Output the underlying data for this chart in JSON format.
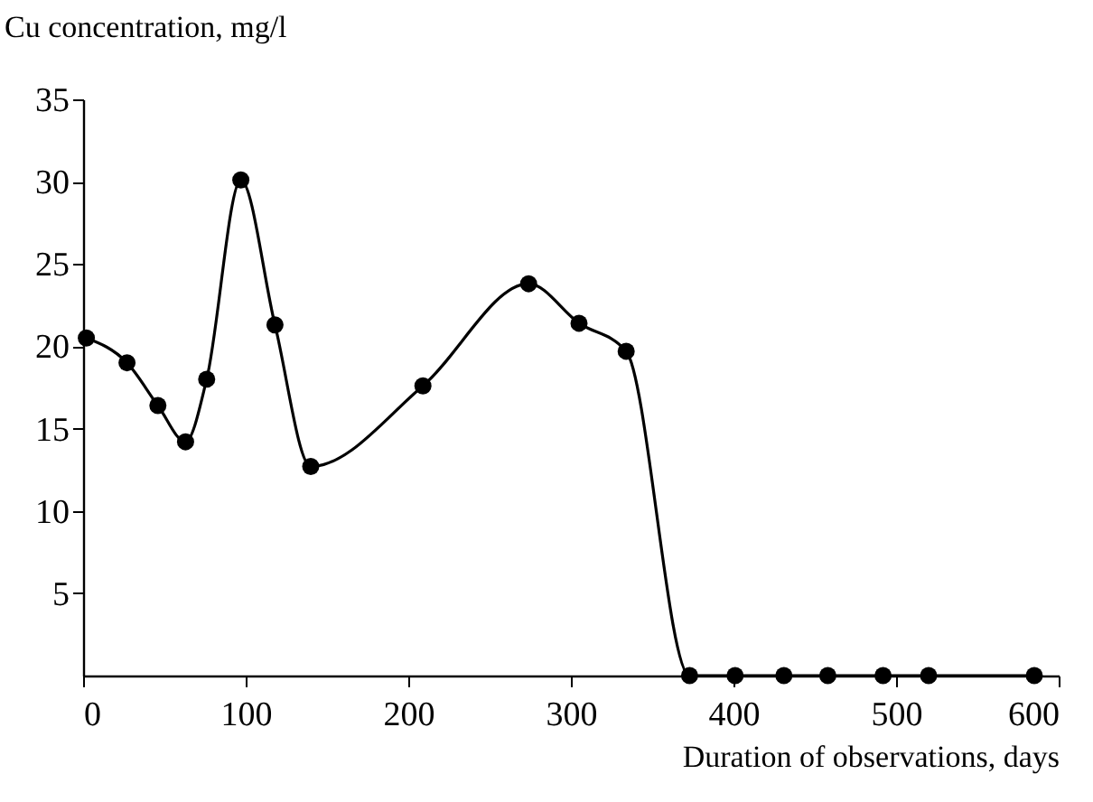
{
  "chart_data": {
    "type": "line",
    "xlabel": "Duration of observations, days",
    "ylabel": "Cu concentration, mg/l",
    "x": [
      2,
      27,
      46,
      63,
      76,
      97,
      118,
      140,
      209,
      274,
      305,
      334,
      373,
      401,
      431,
      458,
      492,
      520,
      585
    ],
    "series": [
      {
        "color": "#000000",
        "values": [
          20.5,
          19.0,
          16.4,
          14.2,
          18.0,
          30.1,
          21.3,
          12.7,
          17.6,
          23.8,
          21.4,
          19.7,
          0,
          0,
          0,
          0,
          0,
          0,
          0
        ]
      }
    ],
    "xlim": [
      0,
      600
    ],
    "xticks": [
      0,
      100,
      200,
      300,
      400,
      500,
      600
    ],
    "ylim": [
      0,
      35
    ],
    "yticks": [
      5,
      10,
      15,
      20,
      25,
      30,
      35
    ],
    "grid": false,
    "marker": "circle",
    "line_style": "solid"
  }
}
